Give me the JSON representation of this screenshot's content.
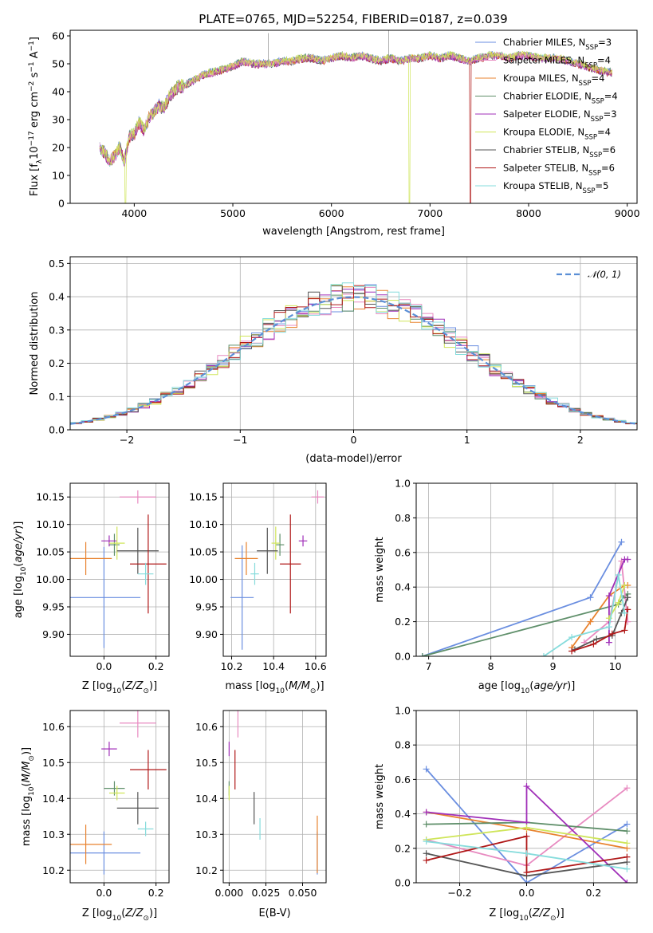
{
  "figure": {
    "title": "PLATE=0765, MJD=52254, FIBERID=0187, z=0.039"
  },
  "colors": {
    "Chabrier MILES": "#6a8ee0",
    "Salpeter MILES": "#e88ac0",
    "Kroupa MILES": "#e8822e",
    "Chabrier ELODIE": "#5f8f6a",
    "Salpeter ELODIE": "#a02fb8",
    "Kroupa ELODIE": "#cfe55a",
    "Chabrier STELIB": "#555555",
    "Salpeter STELIB": "#b01818",
    "Kroupa STELIB": "#86dcdc"
  },
  "chart_data": [
    {
      "id": "spectrum",
      "type": "line",
      "title": "PLATE=0765, MJD=52254, FIBERID=0187, z=0.039",
      "xlabel": "wavelength [Angstrom, rest frame]",
      "ylabel": "Flux [f_λ 10^-17 erg cm^-2 s^-1 A^-1]",
      "xlim": [
        3350,
        9100
      ],
      "ylim": [
        0,
        62
      ],
      "xticks": [
        4000,
        5000,
        6000,
        7000,
        8000,
        9000
      ],
      "yticks": [
        0,
        10,
        20,
        30,
        40,
        50,
        60
      ],
      "legend_position": "upper right",
      "legend": [
        {
          "name": "Chabrier MILES",
          "label": "Chabrier MILES, N",
          "sub": "SSP",
          "suffix": "=3"
        },
        {
          "name": "Salpeter MILES",
          "label": "Salpeter MILES, N",
          "sub": "SSP",
          "suffix": "=4"
        },
        {
          "name": "Kroupa MILES",
          "label": "Kroupa MILES, N",
          "sub": "SSP",
          "suffix": "=4"
        },
        {
          "name": "Chabrier ELODIE",
          "label": "Chabrier ELODIE, N",
          "sub": "SSP",
          "suffix": "=4"
        },
        {
          "name": "Salpeter ELODIE",
          "label": "Salpeter ELODIE, N",
          "sub": "SSP",
          "suffix": "=3"
        },
        {
          "name": "Kroupa ELODIE",
          "label": "Kroupa ELODIE, N",
          "sub": "SSP",
          "suffix": "=4"
        },
        {
          "name": "Chabrier STELIB",
          "label": "Chabrier STELIB, N",
          "sub": "SSP",
          "suffix": "=6"
        },
        {
          "name": "Salpeter STELIB",
          "label": "Salpeter STELIB, N",
          "sub": "SSP",
          "suffix": "=6"
        },
        {
          "name": "Kroupa STELIB",
          "label": "Kroupa STELIB, N",
          "sub": "SSP",
          "suffix": "=5"
        }
      ],
      "x": [
        3650,
        3700,
        3750,
        3800,
        3850,
        3900,
        3950,
        4000,
        4050,
        4100,
        4150,
        4200,
        4250,
        4300,
        4350,
        4400,
        4450,
        4500,
        4600,
        4700,
        4800,
        4900,
        5000,
        5100,
        5200,
        5300,
        5400,
        5500,
        5600,
        5700,
        5800,
        5900,
        6000,
        6100,
        6200,
        6300,
        6400,
        6500,
        6600,
        6700,
        6800,
        6900,
        7000,
        7100,
        7200,
        7300,
        7400,
        7500,
        7600,
        7700,
        7800,
        7900,
        8000,
        8100,
        8200,
        8300,
        8400,
        8500,
        8600,
        8700,
        8800,
        8850
      ],
      "flux": [
        20,
        18,
        15,
        17,
        20,
        15,
        24,
        25,
        29,
        26,
        31,
        33,
        35,
        34,
        38,
        40,
        42,
        42,
        44,
        46,
        47,
        48,
        49,
        51,
        50,
        50,
        50,
        51,
        51,
        52,
        52,
        51,
        52,
        53,
        52,
        53,
        52,
        51,
        52,
        51,
        52,
        52,
        53,
        52,
        53,
        52,
        51,
        52,
        53,
        53,
        52,
        53,
        53,
        52,
        52,
        52,
        51,
        50,
        49,
        48,
        47,
        47
      ],
      "dips": [
        {
          "series": "Kroupa ELODIE",
          "x": 3910
        },
        {
          "series": "Kroupa ELODIE",
          "x": 6790
        },
        {
          "series": "Salpeter STELIB",
          "x": 7410
        }
      ],
      "spikes": [
        {
          "x": 5360,
          "y": 61
        },
        {
          "x": 6580,
          "y": 62
        }
      ]
    },
    {
      "id": "residual-hist",
      "type": "bar",
      "xlabel": "(data-model)/error",
      "ylabel": "Normed distribution",
      "xlim": [
        -2.5,
        2.5
      ],
      "ylim": [
        0,
        0.52
      ],
      "xticks": [
        -2,
        -1,
        0,
        1,
        2
      ],
      "yticks": [
        0.0,
        0.1,
        0.2,
        0.3,
        0.4,
        0.5
      ],
      "bin_width": 0.1,
      "legend_position": "upper right",
      "reference_curve": {
        "name": "𝒩(0, 1)",
        "mean": 0,
        "sigma": 1
      }
    },
    {
      "id": "age-vs-Z",
      "type": "scatter",
      "xlabel": "Z [log10(Z/Z⊙)]",
      "ylabel": "age [log10(age/yr)]",
      "xlim": [
        -0.13,
        0.25
      ],
      "ylim": [
        9.86,
        10.175
      ],
      "xticks": [
        0.0,
        0.2
      ],
      "yticks": [
        9.9,
        9.95,
        10.0,
        10.05,
        10.1,
        10.15
      ],
      "points": [
        {
          "series": "Chabrier MILES",
          "x": 0.0,
          "xerr": 0.14,
          "y": 9.967,
          "yerr": 0.092
        },
        {
          "series": "Salpeter MILES",
          "x": 0.13,
          "xerr": 0.07,
          "y": 10.15,
          "yerr": 0.012
        },
        {
          "series": "Kroupa MILES",
          "x": -0.07,
          "xerr": 0.1,
          "y": 10.038,
          "yerr": 0.03
        },
        {
          "series": "Chabrier ELODIE",
          "x": 0.04,
          "xerr": 0.02,
          "y": 10.063,
          "yerr": 0.02
        },
        {
          "series": "Salpeter ELODIE",
          "x": 0.02,
          "xerr": 0.03,
          "y": 10.07,
          "yerr": 0.01
        },
        {
          "series": "Kroupa ELODIE",
          "x": 0.05,
          "xerr": 0.03,
          "y": 10.066,
          "yerr": 0.03
        },
        {
          "series": "Chabrier STELIB",
          "x": 0.13,
          "xerr": 0.08,
          "y": 10.052,
          "yerr": 0.042
        },
        {
          "series": "Salpeter STELIB",
          "x": 0.17,
          "xerr": 0.07,
          "y": 10.028,
          "yerr": 0.09
        },
        {
          "series": "Kroupa STELIB",
          "x": 0.16,
          "xerr": 0.03,
          "y": 10.01,
          "yerr": 0.02
        }
      ]
    },
    {
      "id": "age-vs-mass",
      "type": "scatter",
      "xlabel": "mass [log10(M/M⊙)]",
      "ylabel": "",
      "xlim": [
        10.16,
        10.65
      ],
      "ylim": [
        9.86,
        10.175
      ],
      "xticks": [
        10.2,
        10.4,
        10.6
      ],
      "yticks": [
        9.9,
        9.95,
        10.0,
        10.05,
        10.1,
        10.15
      ],
      "points": [
        {
          "series": "Chabrier MILES",
          "x": 10.25,
          "xerr": 0.055,
          "y": 9.967,
          "yerr": 0.095
        },
        {
          "series": "Salpeter MILES",
          "x": 10.61,
          "xerr": 0.03,
          "y": 10.15,
          "yerr": 0.012
        },
        {
          "series": "Kroupa MILES",
          "x": 10.27,
          "xerr": 0.055,
          "y": 10.038,
          "yerr": 0.03
        },
        {
          "series": "Chabrier ELODIE",
          "x": 10.43,
          "xerr": 0.02,
          "y": 10.063,
          "yerr": 0.02
        },
        {
          "series": "Salpeter ELODIE",
          "x": 10.54,
          "xerr": 0.02,
          "y": 10.07,
          "yerr": 0.01
        },
        {
          "series": "Kroupa ELODIE",
          "x": 10.41,
          "xerr": 0.02,
          "y": 10.066,
          "yerr": 0.03
        },
        {
          "series": "Chabrier STELIB",
          "x": 10.37,
          "xerr": 0.05,
          "y": 10.052,
          "yerr": 0.042
        },
        {
          "series": "Salpeter STELIB",
          "x": 10.48,
          "xerr": 0.05,
          "y": 10.028,
          "yerr": 0.09
        },
        {
          "series": "Kroupa STELIB",
          "x": 10.31,
          "xerr": 0.02,
          "y": 10.01,
          "yerr": 0.02
        }
      ]
    },
    {
      "id": "weight-vs-age",
      "type": "line",
      "xlabel": "age [log10(age/yr)]",
      "ylabel": "mass weight",
      "xlim": [
        6.8,
        10.35
      ],
      "ylim": [
        0,
        1.0
      ],
      "xticks": [
        7,
        8,
        9,
        10
      ],
      "yticks": [
        0.0,
        0.2,
        0.4,
        0.6,
        0.8,
        1.0
      ],
      "series": [
        {
          "name": "Chabrier MILES",
          "x": [
            6.9,
            9.6,
            10.1
          ],
          "y": [
            0.0,
            0.34,
            0.66
          ]
        },
        {
          "name": "Kroupa MILES",
          "x": [
            9.3,
            9.6,
            9.9,
            10.15,
            10.2
          ],
          "y": [
            0.05,
            0.2,
            0.35,
            0.41,
            0.41
          ]
        },
        {
          "name": "Chabrier ELODIE",
          "x": [
            6.9,
            10.05,
            10.15,
            10.2
          ],
          "y": [
            0.0,
            0.3,
            0.35,
            0.36
          ]
        },
        {
          "name": "Salpeter MILES",
          "x": [
            9.5,
            9.9,
            10.1,
            10.2
          ],
          "y": [
            0.08,
            0.2,
            0.55,
            0.2
          ]
        },
        {
          "name": "Salpeter ELODIE",
          "x": [
            9.9,
            9.9,
            10.15,
            10.2
          ],
          "y": [
            0.08,
            0.35,
            0.56,
            0.56
          ]
        },
        {
          "name": "Kroupa ELODIE",
          "x": [
            9.9,
            10.05,
            10.15
          ],
          "y": [
            0.22,
            0.31,
            0.41
          ]
        },
        {
          "name": "Chabrier STELIB",
          "x": [
            9.35,
            9.7,
            9.95,
            10.1,
            10.2
          ],
          "y": [
            0.04,
            0.1,
            0.12,
            0.25,
            0.34
          ]
        },
        {
          "name": "Salpeter STELIB",
          "x": [
            9.3,
            9.65,
            9.95,
            10.15,
            10.2
          ],
          "y": [
            0.03,
            0.07,
            0.13,
            0.15,
            0.27
          ]
        },
        {
          "name": "Kroupa STELIB",
          "x": [
            8.85,
            9.3,
            9.9,
            10.05,
            10.15
          ],
          "y": [
            0.0,
            0.11,
            0.17,
            0.47,
            0.25
          ]
        }
      ]
    },
    {
      "id": "mass-vs-Z",
      "type": "scatter",
      "xlabel": "Z [log10(Z/Z⊙)]",
      "ylabel": "mass [log10(M/M⊙)]",
      "xlim": [
        -0.13,
        0.25
      ],
      "ylim": [
        10.165,
        10.645
      ],
      "xticks": [
        0.0,
        0.2
      ],
      "yticks": [
        10.2,
        10.3,
        10.4,
        10.5,
        10.6
      ],
      "points": [
        {
          "series": "Chabrier MILES",
          "x": 0.0,
          "xerr": 0.14,
          "y": 10.248,
          "yerr": 0.06
        },
        {
          "series": "Salpeter MILES",
          "x": 0.13,
          "xerr": 0.07,
          "y": 10.61,
          "yerr": 0.04
        },
        {
          "series": "Kroupa MILES",
          "x": -0.07,
          "xerr": 0.1,
          "y": 10.272,
          "yerr": 0.055
        },
        {
          "series": "Chabrier ELODIE",
          "x": 0.04,
          "xerr": 0.04,
          "y": 10.428,
          "yerr": 0.02
        },
        {
          "series": "Salpeter ELODIE",
          "x": 0.02,
          "xerr": 0.03,
          "y": 10.538,
          "yerr": 0.02
        },
        {
          "series": "Kroupa ELODIE",
          "x": 0.05,
          "xerr": 0.03,
          "y": 10.415,
          "yerr": 0.02
        },
        {
          "series": "Chabrier STELIB",
          "x": 0.13,
          "xerr": 0.08,
          "y": 10.373,
          "yerr": 0.045
        },
        {
          "series": "Salpeter STELIB",
          "x": 0.17,
          "xerr": 0.07,
          "y": 10.48,
          "yerr": 0.055
        },
        {
          "series": "Kroupa STELIB",
          "x": 0.16,
          "xerr": 0.03,
          "y": 10.315,
          "yerr": 0.02
        }
      ]
    },
    {
      "id": "mass-vs-ebv",
      "type": "scatter",
      "xlabel": "E(B-V)",
      "ylabel": "",
      "xlim": [
        -0.004,
        0.066
      ],
      "ylim": [
        10.165,
        10.645
      ],
      "xticks": [
        0.0,
        0.025,
        0.05
      ],
      "xtick_labels": [
        "0.000",
        "0.025",
        "0.050"
      ],
      "yticks": [
        10.2,
        10.3,
        10.4,
        10.5,
        10.6
      ],
      "points": [
        {
          "series": "Chabrier MILES",
          "x": 0.06,
          "xerr": 0,
          "y": 10.248,
          "yerr": 0.06
        },
        {
          "series": "Salpeter MILES",
          "x": 0.006,
          "xerr": 0,
          "y": 10.61,
          "yerr": 0.04
        },
        {
          "series": "Kroupa MILES",
          "x": 0.06,
          "xerr": 0,
          "y": 10.272,
          "yerr": 0.08
        },
        {
          "series": "Chabrier ELODIE",
          "x": 0.0,
          "xerr": 0,
          "y": 10.428,
          "yerr": 0.02
        },
        {
          "series": "Salpeter ELODIE",
          "x": 0.0,
          "xerr": 0,
          "y": 10.538,
          "yerr": 0.02
        },
        {
          "series": "Kroupa ELODIE",
          "x": 0.0,
          "xerr": 0,
          "y": 10.415,
          "yerr": 0.02
        },
        {
          "series": "Chabrier STELIB",
          "x": 0.017,
          "xerr": 0,
          "y": 10.373,
          "yerr": 0.045
        },
        {
          "series": "Salpeter STELIB",
          "x": 0.004,
          "xerr": 0,
          "y": 10.48,
          "yerr": 0.055
        },
        {
          "series": "Kroupa STELIB",
          "x": 0.021,
          "xerr": 0,
          "y": 10.315,
          "yerr": 0.03
        }
      ]
    },
    {
      "id": "weight-vs-Z",
      "type": "line",
      "xlabel": "Z [log10(Z/Z⊙)]",
      "ylabel": "mass weight",
      "xlim": [
        -0.33,
        0.33
      ],
      "ylim": [
        0,
        1.0
      ],
      "xticks": [
        -0.2,
        0.0,
        0.2
      ],
      "yticks": [
        0.0,
        0.2,
        0.4,
        0.6,
        0.8,
        1.0
      ],
      "series": [
        {
          "name": "Chabrier MILES",
          "x": [
            -0.3,
            0.0,
            0.3
          ],
          "y": [
            0.66,
            0.0,
            0.34
          ]
        },
        {
          "name": "Salpeter MILES",
          "x": [
            -0.3,
            0.0,
            0.3
          ],
          "y": [
            0.25,
            0.1,
            0.55
          ]
        },
        {
          "name": "Kroupa MILES",
          "x": [
            -0.3,
            0.0,
            0.3
          ],
          "y": [
            0.41,
            0.31,
            0.2
          ]
        },
        {
          "name": "Chabrier ELODIE",
          "x": [
            -0.3,
            0.0,
            0.3
          ],
          "y": [
            0.34,
            0.35,
            0.3
          ]
        },
        {
          "name": "Salpeter ELODIE",
          "x": [
            -0.3,
            0.0,
            0.0,
            0.3
          ],
          "y": [
            0.41,
            0.35,
            0.56,
            0.0
          ]
        },
        {
          "name": "Kroupa ELODIE",
          "x": [
            -0.3,
            0.0,
            0.3
          ],
          "y": [
            0.25,
            0.32,
            0.23
          ]
        },
        {
          "name": "Chabrier STELIB",
          "x": [
            -0.3,
            0.0,
            0.3
          ],
          "y": [
            0.17,
            0.04,
            0.12
          ]
        },
        {
          "name": "Salpeter STELIB",
          "x": [
            -0.3,
            0.0,
            0.0,
            0.3
          ],
          "y": [
            0.13,
            0.27,
            0.06,
            0.15
          ]
        },
        {
          "name": "Kroupa STELIB",
          "x": [
            -0.3,
            0.0,
            0.3
          ],
          "y": [
            0.24,
            0.17,
            0.08
          ]
        }
      ]
    }
  ]
}
